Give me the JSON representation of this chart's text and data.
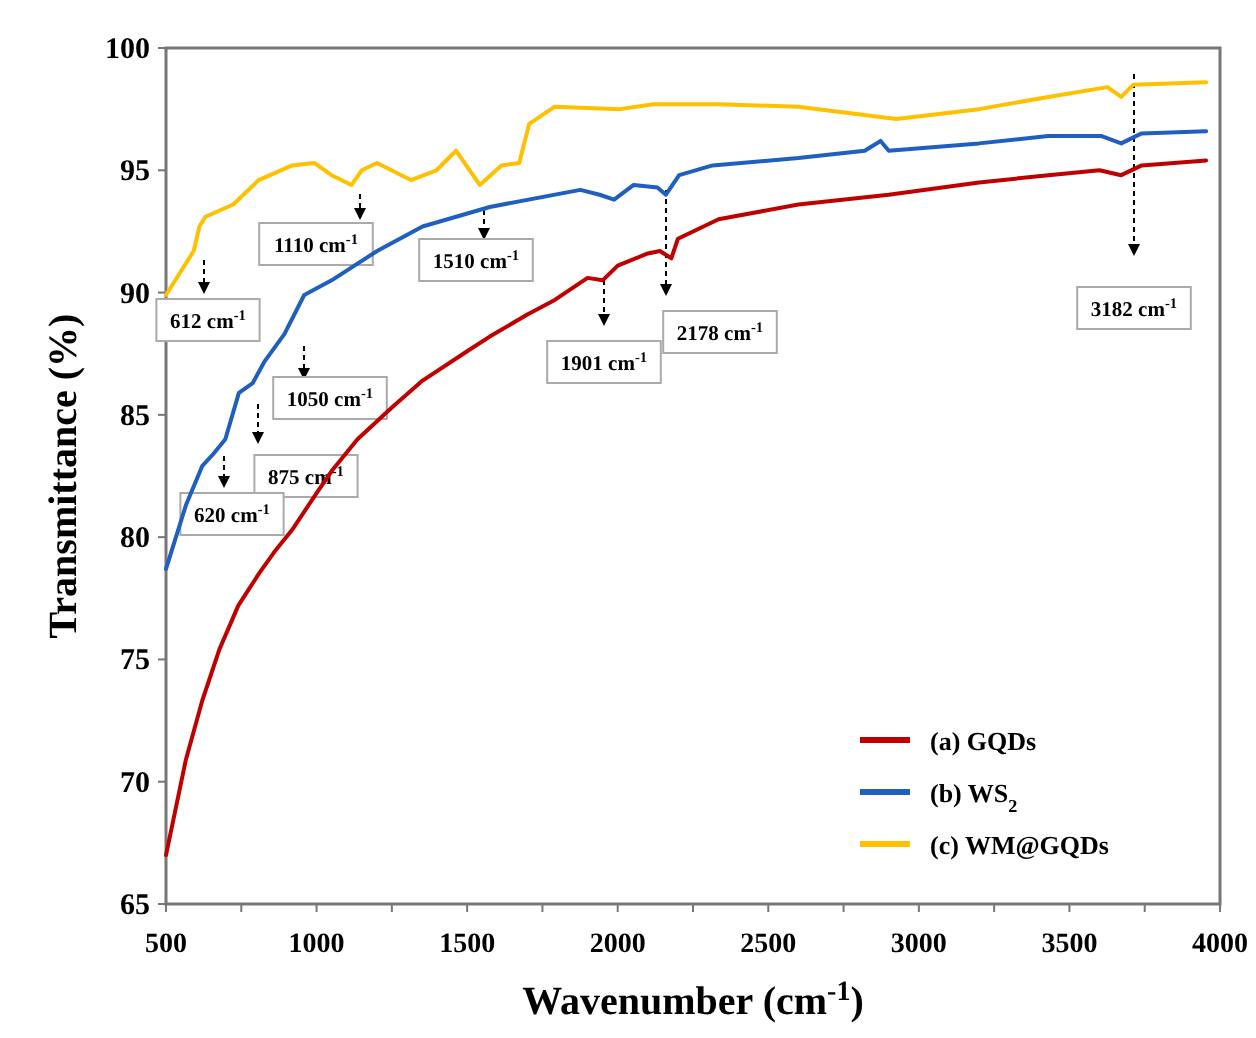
{
  "chart_data": {
    "type": "line",
    "xlabel": "Wavenumber (cm$^{-1}$)",
    "ylabel": "Transmittance (%)",
    "xlim": [
      500,
      4000
    ],
    "ylim": [
      65,
      100
    ],
    "xticks": [
      500,
      {
        "value": 750,
        "label": null
      },
      1000,
      {
        "value": 1250,
        "label": null
      },
      1500,
      {
        "value": 1750,
        "label": null
      },
      2000,
      {
        "value": 2250,
        "label": null
      },
      2500,
      {
        "value": 2750,
        "label": null
      },
      3000,
      {
        "value": 3250,
        "label": null
      },
      3500,
      {
        "value": 3750,
        "label": null
      },
      4000
    ],
    "yticks": [
      65,
      70,
      75,
      80,
      85,
      90,
      95,
      100
    ],
    "grid": false,
    "legend": "bottom right",
    "line_style": "solid",
    "marker": "none",
    "series": [
      {
        "name": "(a) GQDs",
        "color": "#c00000",
        "x": [
          500,
          566,
          620,
          677,
          740,
          808,
          860,
          919,
          1000,
          1050,
          1136,
          1250,
          1352,
          1500,
          1575,
          1700,
          1791,
          1900,
          1950,
          2000,
          2100,
          2140,
          2178,
          2200,
          2335,
          2600,
          2900,
          3200,
          3430,
          3600,
          3672,
          3740,
          3954
        ],
        "values": [
          67,
          70.9,
          73.3,
          75.4,
          77.2,
          78.5,
          79.4,
          80.3,
          81.8,
          82.7,
          84,
          85.3,
          86.4,
          87.6,
          88.2,
          89.1,
          89.7,
          90.6,
          90.5,
          91.1,
          91.6,
          91.7,
          91.4,
          92.2,
          93,
          93.6,
          94,
          94.5,
          94.8,
          95,
          94.8,
          95.2,
          95.4
        ]
      },
      {
        "name": "(b) WS$_{2}$",
        "color": "#1f5fbf",
        "x": [
          500,
          566,
          620,
          657,
          697,
          742,
          788,
          828,
          893,
          959,
          1050,
          1201,
          1352,
          1575,
          1876,
          1940,
          1988,
          2053,
          2132,
          2160,
          2204,
          2315,
          2600,
          2820,
          2873,
          2900,
          3200,
          3430,
          3607,
          3672,
          3738,
          3954
        ],
        "values": [
          78.7,
          81.3,
          82.9,
          83.4,
          84,
          85.9,
          86.3,
          87.2,
          88.3,
          89.9,
          90.5,
          91.7,
          92.7,
          93.5,
          94.2,
          94,
          93.8,
          94.4,
          94.3,
          94,
          94.8,
          95.2,
          95.5,
          95.8,
          96.2,
          95.8,
          96.1,
          96.4,
          96.4,
          96.1,
          96.5,
          96.6
        ]
      },
      {
        "name": "(c) WM@GQDs",
        "color": "#ffc000",
        "x": [
          500,
          546,
          592,
          611,
          631,
          723,
          808,
          919,
          992,
          1050,
          1116,
          1150,
          1201,
          1313,
          1398,
          1463,
          1542,
          1614,
          1673,
          1706,
          1791,
          2007,
          2119,
          2335,
          2600,
          2925,
          3200,
          3430,
          3626,
          3672,
          3712,
          3954
        ],
        "values": [
          89.9,
          90.8,
          91.7,
          92.7,
          93.1,
          93.6,
          94.6,
          95.2,
          95.3,
          94.8,
          94.4,
          95,
          95.3,
          94.6,
          95,
          95.8,
          94.4,
          95.2,
          95.3,
          96.9,
          97.6,
          97.5,
          97.7,
          97.7,
          97.6,
          97.1,
          97.5,
          98,
          98.4,
          98,
          98.5,
          98.6
        ]
      }
    ],
    "annotations": [
      "612 cm$^{-1}$",
      "1110 cm$^{-1}$",
      "1510 cm$^{-1}$",
      "1050 cm$^{-1}$",
      "875 cm$^{-1}$",
      "620 cm$^{-1}$",
      "1901 cm$^{-1}$",
      "2178 cm$^{-1}$",
      "3182 cm$^{-1}$"
    ]
  }
}
